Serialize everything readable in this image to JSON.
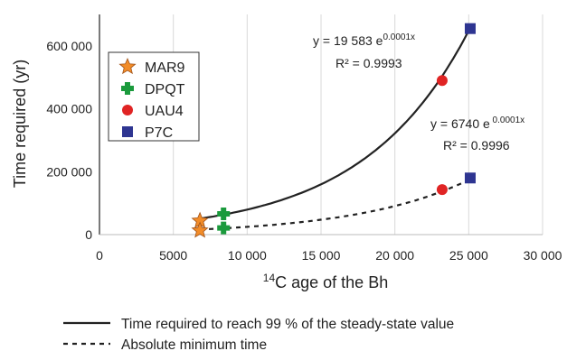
{
  "chart_data": {
    "type": "scatter",
    "xlabel_sup": "14",
    "xlabel_main": "C age of the Bh",
    "ylabel": "Time  required (yr)",
    "xlim": [
      0,
      30000
    ],
    "ylim": [
      0,
      700000
    ],
    "x_ticks": [
      {
        "value": 0,
        "label": "0"
      },
      {
        "value": 5000,
        "label": "5000"
      },
      {
        "value": 10000,
        "label": "10 000"
      },
      {
        "value": 15000,
        "label": "15 000"
      },
      {
        "value": 20000,
        "label": "20 000"
      },
      {
        "value": 25000,
        "label": "25 000"
      },
      {
        "value": 30000,
        "label": "30 000"
      }
    ],
    "y_ticks": [
      {
        "value": 0,
        "label": "0"
      },
      {
        "value": 200000,
        "label": "200 000"
      },
      {
        "value": 400000,
        "label": "400 000"
      },
      {
        "value": 600000,
        "label": "600 000"
      }
    ],
    "grid": {
      "vertical": true,
      "horizontal": false
    },
    "marker_legend_position": "top-left",
    "colors": {
      "MAR9": "#f28c28",
      "DPQT": "#1a9a3c",
      "UAU4": "#e02424",
      "P7C": "#2e3591",
      "curve": "#222222",
      "grid": "#d9d9d9"
    },
    "series": [
      {
        "name": "MAR9",
        "marker": "star",
        "points": [
          [
            6800,
            44000
          ],
          [
            6800,
            13000
          ]
        ]
      },
      {
        "name": "DPQT",
        "marker": "plus",
        "points": [
          [
            8400,
            66000
          ],
          [
            8400,
            21000
          ]
        ]
      },
      {
        "name": "UAU4",
        "marker": "circle",
        "points": [
          [
            23200,
            490000
          ],
          [
            23200,
            143000
          ]
        ]
      },
      {
        "name": "P7C",
        "marker": "square",
        "points": [
          [
            25100,
            655000
          ],
          [
            25100,
            180000
          ]
        ]
      }
    ],
    "fits": [
      {
        "id": "steady",
        "style": "solid",
        "a": 19583,
        "b": 0.00014,
        "x_range": [
          6800,
          25100
        ],
        "equation_main": "y = 19 583  e",
        "equation_exp": "0.0001x",
        "r2_text": "R² = 0.9993"
      },
      {
        "id": "minimum",
        "style": "dashed",
        "a": 6740,
        "b": 0.00013,
        "x_range": [
          6800,
          25100
        ],
        "equation_main": "y = 6740 e",
        "equation_exp": " 0.0001x",
        "r2_text": "R² = 0.9996"
      }
    ],
    "line_legend": [
      {
        "style": "solid",
        "label": "Time required to reach 99 % of the steady-state value"
      },
      {
        "style": "dashed",
        "label": "Absolute minimum time"
      }
    ]
  }
}
